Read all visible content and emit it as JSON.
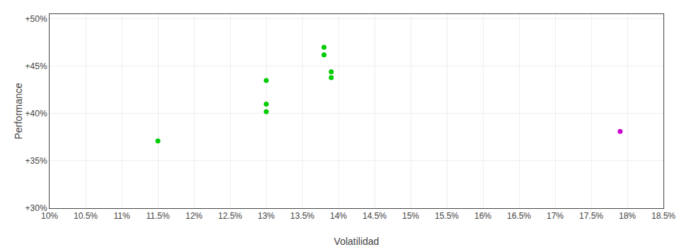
{
  "chart_data": {
    "type": "scatter",
    "xlabel": "Volatilidad",
    "ylabel": "Performance",
    "series": [
      {
        "color": "#00cc00",
        "x": [
          0.115,
          0.13,
          0.13,
          0.13,
          0.138,
          0.138,
          0.139,
          0.139
        ],
        "values": [
          0.371,
          0.435,
          0.41,
          0.402,
          0.47,
          0.462,
          0.444,
          0.438
        ]
      },
      {
        "color": "#cc00cc",
        "x": [
          0.179
        ],
        "values": [
          0.381
        ]
      }
    ],
    "xlim": [
      0.1,
      0.185
    ],
    "ylim": [
      0.3,
      0.505
    ],
    "xticks": [
      {
        "value": 0.1,
        "label": "10%"
      },
      {
        "value": 0.105,
        "label": "10.5%"
      },
      {
        "value": 0.11,
        "label": "11%"
      },
      {
        "value": 0.115,
        "label": "11.5%"
      },
      {
        "value": 0.12,
        "label": "12%"
      },
      {
        "value": 0.125,
        "label": "12.5%"
      },
      {
        "value": 0.13,
        "label": "13%"
      },
      {
        "value": 0.135,
        "label": "13.5%"
      },
      {
        "value": 0.14,
        "label": "14%"
      },
      {
        "value": 0.145,
        "label": "14.5%"
      },
      {
        "value": 0.15,
        "label": "15%"
      },
      {
        "value": 0.155,
        "label": "15.5%"
      },
      {
        "value": 0.16,
        "label": "16%"
      },
      {
        "value": 0.165,
        "label": "16.5%"
      },
      {
        "value": 0.17,
        "label": "17%"
      },
      {
        "value": 0.175,
        "label": "17.5%"
      },
      {
        "value": 0.18,
        "label": "18%"
      },
      {
        "value": 0.185,
        "label": "18.5%"
      }
    ],
    "yticks": [
      {
        "value": 0.3,
        "label": "+30%"
      },
      {
        "value": 0.35,
        "label": "+35%"
      },
      {
        "value": 0.4,
        "label": "+40%"
      },
      {
        "value": 0.45,
        "label": "+45%"
      },
      {
        "value": 0.5,
        "label": "+50%"
      }
    ],
    "grid": true
  }
}
